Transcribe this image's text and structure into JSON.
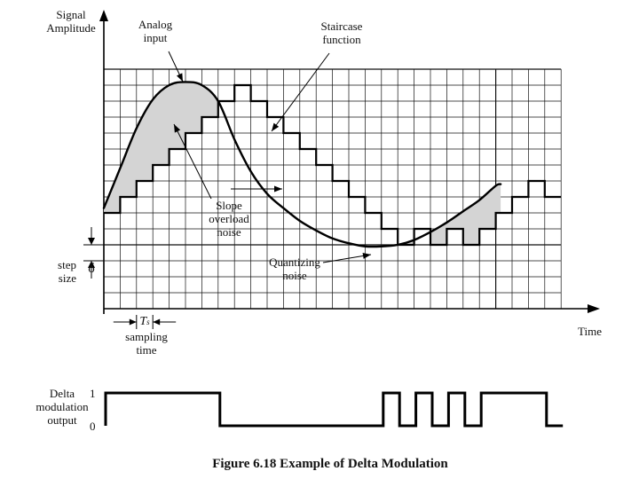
{
  "labels": {
    "y_axis_line1": "Signal",
    "y_axis_line2": "Amplitude",
    "analog_line1": "Analog",
    "analog_line2": "input",
    "staircase_line1": "Staircase",
    "staircase_line2": "function",
    "slope_line1": "Slope",
    "slope_line2": "overload",
    "slope_line3": "noise",
    "quant_line1": "Quantizing",
    "quant_line2": "noise",
    "step_line1": "step",
    "step_line2": "size",
    "delta_symbol": "δ",
    "ts_symbol": "T",
    "ts_subscript": "s",
    "sampling_line1": "sampling",
    "sampling_line2": "time",
    "time_axis": "Time",
    "dm_line1": "Delta",
    "dm_line2": "modulation",
    "dm_line3": "output",
    "dm_one": "1",
    "dm_zero": "0",
    "caption": "Figure 6.18  Example of Delta Modulation"
  },
  "chart_data": {
    "type": "line",
    "title": "Example of Delta Modulation",
    "xlabel": "Time",
    "ylabel": "Signal Amplitude",
    "units": "x in sampling periods Ts, y in step sizes δ",
    "series": [
      {
        "name": "Staircase function",
        "kind": "step",
        "values": [
          0,
          1,
          2,
          3,
          4,
          5,
          6,
          7,
          8,
          7,
          6,
          5,
          4,
          3,
          2,
          1,
          0,
          -1,
          -2,
          -1,
          -2,
          -1,
          -2,
          -1,
          0,
          1,
          2,
          1
        ]
      },
      {
        "name": "Analog input",
        "kind": "smooth",
        "points": [
          [
            0,
            0.3
          ],
          [
            1,
            2.8
          ],
          [
            2,
            5.3
          ],
          [
            3,
            7.1
          ],
          [
            4,
            8.0
          ],
          [
            5,
            8.2
          ],
          [
            6,
            8.0
          ],
          [
            7,
            7.0
          ],
          [
            8,
            4.6
          ],
          [
            9,
            2.6
          ],
          [
            10,
            1.2
          ],
          [
            11,
            0.3
          ],
          [
            12,
            -0.5
          ],
          [
            13,
            -1.1
          ],
          [
            14,
            -1.6
          ],
          [
            15,
            -1.9
          ],
          [
            16,
            -2.1
          ],
          [
            17,
            -2.1
          ],
          [
            18,
            -2.0
          ],
          [
            19,
            -1.7
          ],
          [
            20,
            -1.2
          ],
          [
            21,
            -0.6
          ],
          [
            22,
            0.1
          ],
          [
            23,
            0.8
          ],
          [
            24,
            1.7
          ],
          [
            24.3,
            1.8
          ]
        ]
      }
    ],
    "delta_modulation_output": [
      1,
      1,
      1,
      1,
      1,
      1,
      1,
      0,
      0,
      0,
      0,
      0,
      0,
      0,
      0,
      0,
      0,
      1,
      0,
      1,
      0,
      1,
      0,
      1,
      1,
      1,
      1,
      0
    ]
  }
}
